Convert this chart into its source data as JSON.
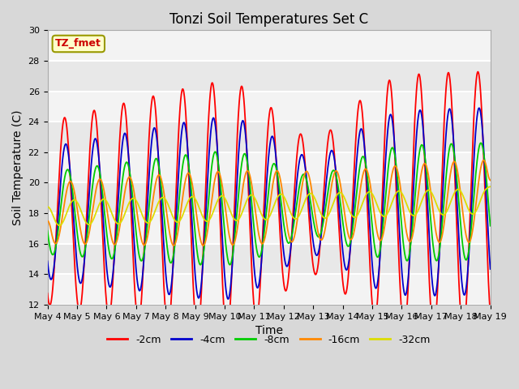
{
  "title": "Tonzi Soil Temperatures Set C",
  "xlabel": "Time",
  "ylabel": "Soil Temperature (C)",
  "ylim": [
    12,
    30
  ],
  "x_tick_labels": [
    "May 4",
    "May 5",
    "May 6",
    "May 7",
    "May 8",
    "May 9",
    "May 10",
    "May 11",
    "May 12",
    "May 13",
    "May 14",
    "May 15",
    "May 16",
    "May 17",
    "May 18",
    "May 19"
  ],
  "legend_entries": [
    "-2cm",
    "-4cm",
    "-8cm",
    "-16cm",
    "-32cm"
  ],
  "line_colors": [
    "#ff0000",
    "#0000cc",
    "#00cc00",
    "#ff8800",
    "#dddd00"
  ],
  "label_box_text": "TZ_fmet",
  "label_box_facecolor": "#ffffcc",
  "label_box_edgecolor": "#999900",
  "label_text_color": "#cc0000",
  "fig_facecolor": "#d8d8d8",
  "axes_facecolor": "#e8e8e8",
  "grid_color": "#ffffff",
  "title_fontsize": 12,
  "axis_label_fontsize": 10,
  "tick_fontsize": 8,
  "line_width": 1.3
}
